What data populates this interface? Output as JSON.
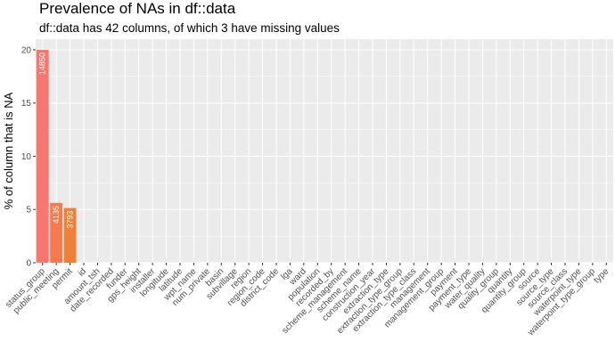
{
  "chart_data": {
    "type": "bar",
    "title": "Prevalence of NAs in df::data",
    "subtitle": "df::data has 42 columns, of which 3 have missing values",
    "xlabel": "",
    "ylabel": "% of column that is NA",
    "ylim": [
      0,
      21
    ],
    "yticks": [
      0,
      5,
      10,
      15,
      20
    ],
    "grid": true,
    "categories": [
      "status_group",
      "public_meeting",
      "permit",
      "id",
      "amount_tsh",
      "date_recorded",
      "funder",
      "gps_height",
      "installer",
      "longitude",
      "latitude",
      "wpt_name",
      "num_private",
      "basin",
      "subvillage",
      "region",
      "region_code",
      "district_code",
      "lga",
      "ward",
      "population",
      "recorded_by",
      "scheme_management",
      "scheme_name",
      "construction_year",
      "extraction_type",
      "extraction_type_group",
      "extraction_type_class",
      "management",
      "management_group",
      "payment",
      "payment_type",
      "water_quality",
      "quality_group",
      "quantity",
      "quantity_group",
      "source",
      "source_type",
      "source_class",
      "waterpoint_type",
      "waterpoint_type_group",
      "type"
    ],
    "values": [
      20.0,
      5.61,
      5.14,
      0,
      0,
      0,
      0,
      0,
      0,
      0,
      0,
      0,
      0,
      0,
      0,
      0,
      0,
      0,
      0,
      0,
      0,
      0,
      0,
      0,
      0,
      0,
      0,
      0,
      0,
      0,
      0,
      0,
      0,
      0,
      0,
      0,
      0,
      0,
      0,
      0,
      0,
      0
    ],
    "data_labels": [
      "14850",
      "4135",
      "3793",
      "",
      "",
      "",
      "",
      "",
      "",
      "",
      "",
      "",
      "",
      "",
      "",
      "",
      "",
      "",
      "",
      "",
      "",
      "",
      "",
      "",
      "",
      "",
      "",
      "",
      "",
      "",
      "",
      "",
      "",
      "",
      "",
      "",
      "",
      "",
      "",
      "",
      "",
      ""
    ],
    "bar_colors": [
      "#f8766d",
      "#f57b4f",
      "#ef8035"
    ]
  }
}
